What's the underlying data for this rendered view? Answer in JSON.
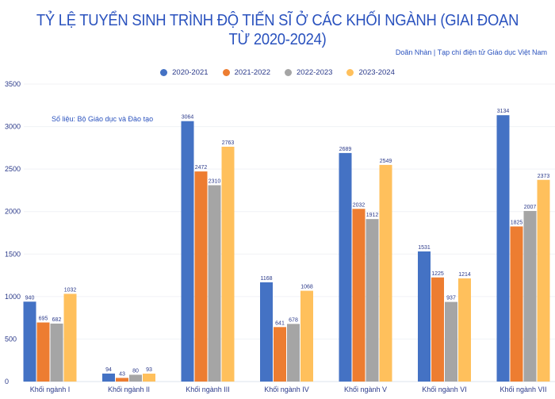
{
  "chart_data": {
    "type": "bar",
    "title": "TỶ LỆ TUYỂN SINH TRÌNH ĐỘ TIẾN SĨ Ở CÁC KHỐI NGÀNH (GIAI ĐOẠN TỪ 2020-2024)",
    "credit": "Doãn Nhàn | Tạp chí điện tử Giáo dục Việt Nam",
    "note": "Số liệu: Bộ Giáo dục và Đào tạo",
    "categories": [
      "Khối ngành I",
      "Khối ngành II",
      "Khối ngành III",
      "Khối ngành IV",
      "Khối ngành V",
      "Khối ngành VI",
      "Khối ngành VII"
    ],
    "series": [
      {
        "name": "2020-2021",
        "color": "#4472c4",
        "values": [
          940,
          94,
          3064,
          1168,
          2689,
          1531,
          3134
        ]
      },
      {
        "name": "2021-2022",
        "color": "#ed7d31",
        "values": [
          695,
          43,
          2472,
          641,
          2032,
          1225,
          1825
        ]
      },
      {
        "name": "2022-2023",
        "color": "#a5a5a5",
        "values": [
          682,
          80,
          2310,
          678,
          1912,
          937,
          2007
        ]
      },
      {
        "name": "2023-2024",
        "color": "#ffc05c",
        "values": [
          1032,
          93,
          2763,
          1068,
          2549,
          1214,
          2373
        ]
      }
    ],
    "ylim": [
      0,
      3500
    ],
    "yticks": [
      0,
      500,
      1000,
      1500,
      2000,
      2500,
      3000,
      3500
    ],
    "grid": true,
    "legend": "top-center"
  }
}
